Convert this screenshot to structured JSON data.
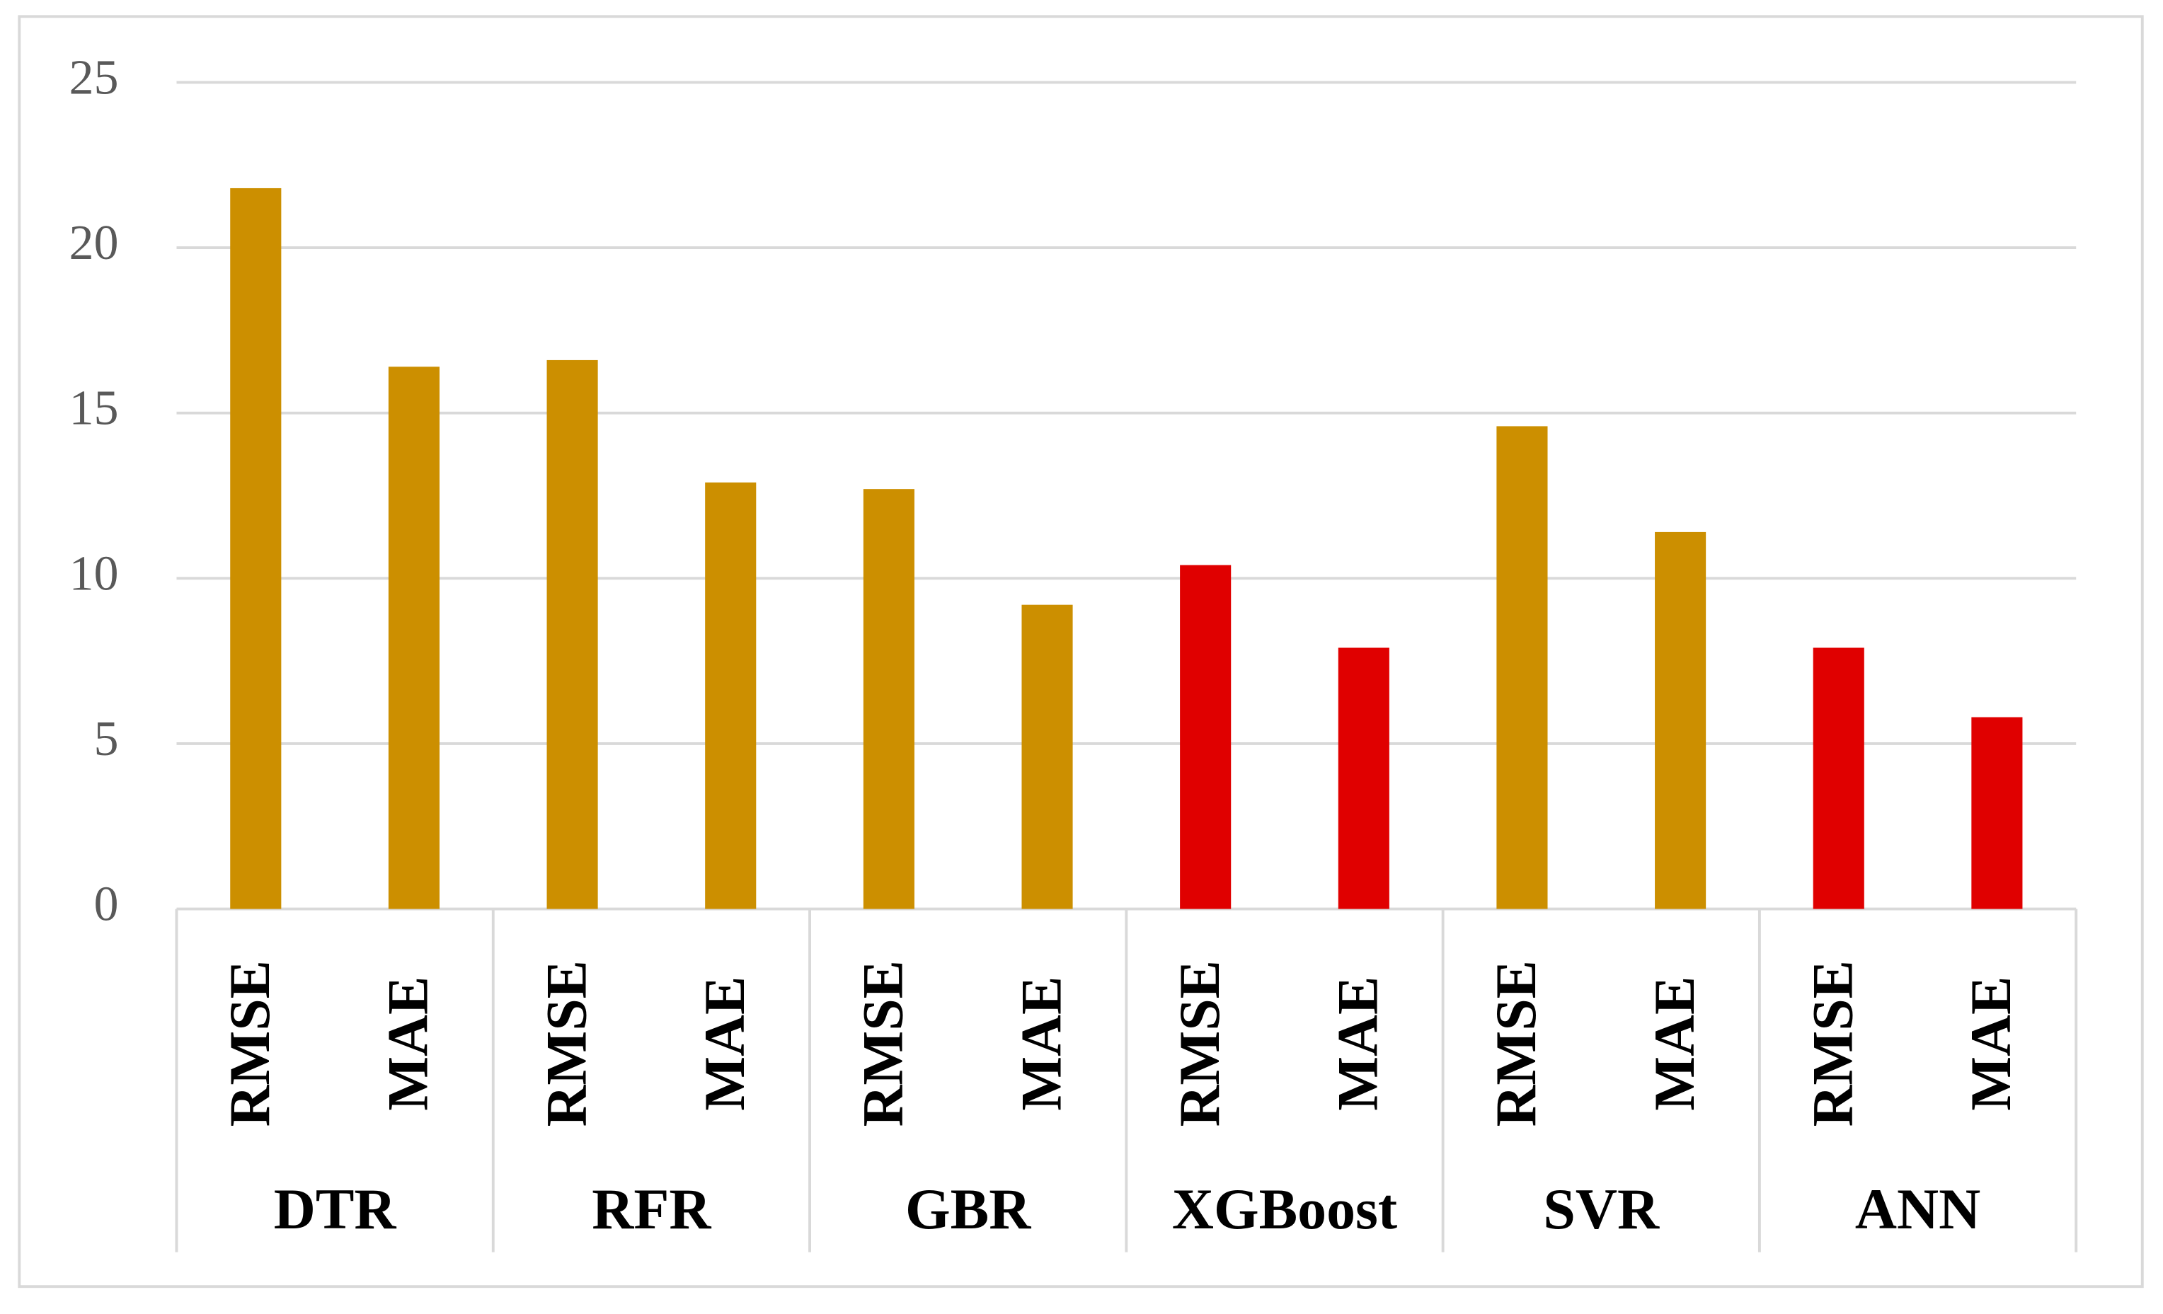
{
  "chart_data": {
    "type": "bar",
    "categories": [
      "RMSE",
      "MAE",
      "RMSE",
      "MAE",
      "RMSE",
      "MAE",
      "RMSE",
      "MAE",
      "RMSE",
      "MAE",
      "RMSE",
      "MAE"
    ],
    "groups": [
      "DTR",
      "RFR",
      "GBR",
      "XGBoost",
      "SVR",
      "ANN"
    ],
    "values": [
      21.8,
      16.4,
      16.6,
      12.9,
      12.7,
      9.2,
      10.4,
      7.9,
      14.6,
      11.4,
      7.9,
      5.8
    ],
    "colors": [
      "#cc8f00",
      "#cc8f00",
      "#cc8f00",
      "#cc8f00",
      "#cc8f00",
      "#cc8f00",
      "#e00000",
      "#e00000",
      "#cc8f00",
      "#cc8f00",
      "#e00000",
      "#e00000"
    ],
    "ylim": [
      0,
      25
    ],
    "yticks": [
      0,
      5,
      10,
      15,
      20,
      25
    ],
    "grid": true
  }
}
